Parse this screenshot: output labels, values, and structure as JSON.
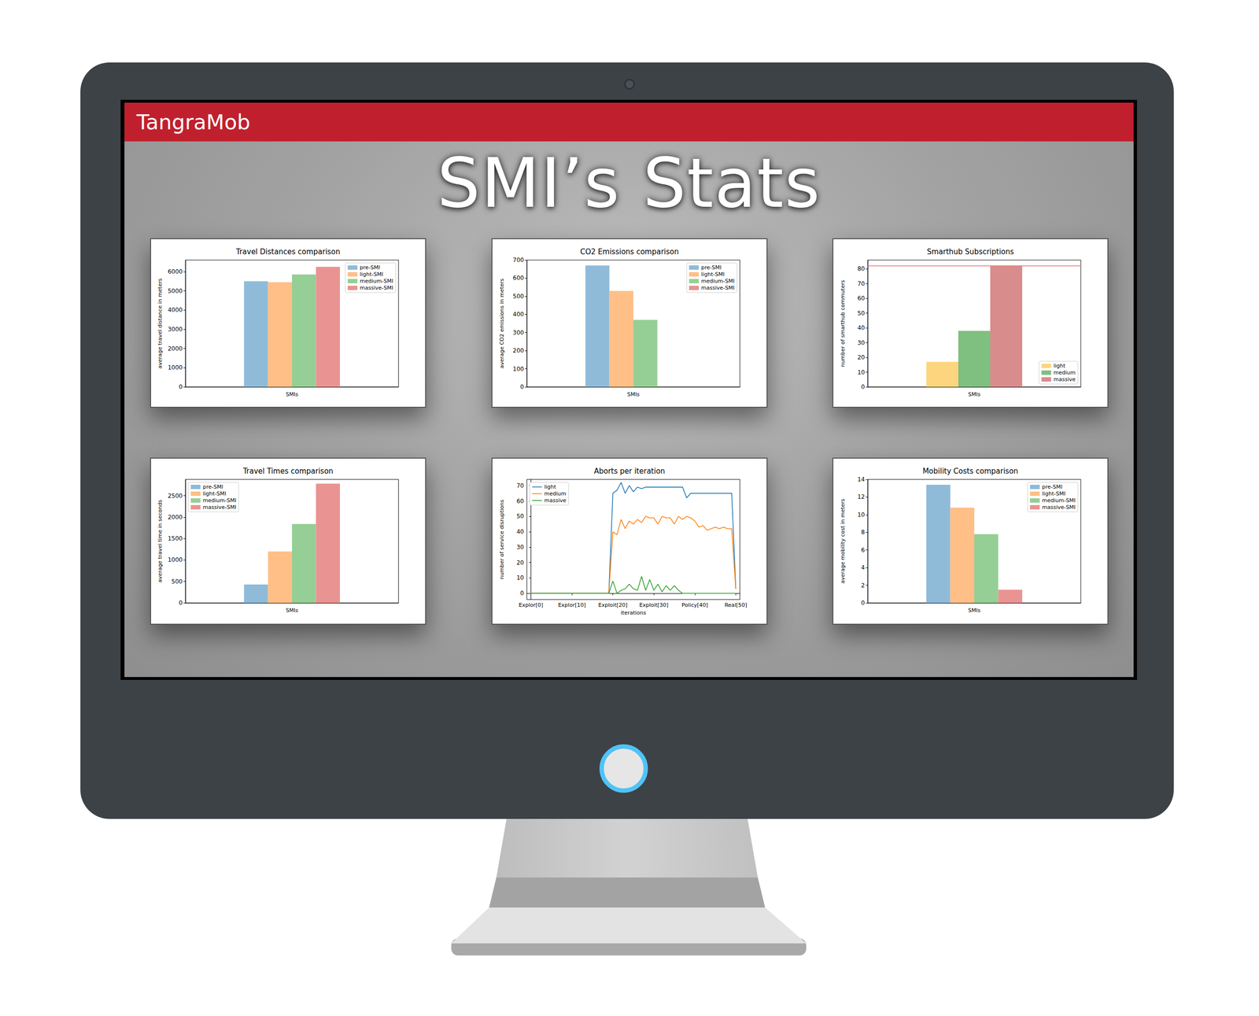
{
  "app_title": "TangraMob",
  "page_title": "SMI’s Stats",
  "chart_data": [
    {
      "type": "bar",
      "title": "Travel Distances comparison",
      "xlabel": "SMIs",
      "ylabel": "average travel distance in meters",
      "categories": [
        null
      ],
      "series": [
        {
          "name": "pre-SMI",
          "color": "#8fbbd9",
          "values": [
            5500
          ]
        },
        {
          "name": "light-SMI",
          "color": "#ffbf86",
          "values": [
            5450
          ]
        },
        {
          "name": "medium-SMI",
          "color": "#95cf95",
          "values": [
            5850
          ]
        },
        {
          "name": "massive-SMI",
          "color": "#ea9393",
          "values": [
            6250
          ]
        }
      ],
      "ylim": [
        0,
        6600
      ],
      "yticks": [
        0,
        1000,
        2000,
        3000,
        4000,
        5000,
        6000
      ],
      "grid": false,
      "legend": "upper right",
      "tick_labels": "y"
    },
    {
      "type": "bar",
      "title": "CO2 Emissions comparison",
      "xlabel": "SMIs",
      "ylabel": "average CO2 emissions in meters",
      "categories": [
        null
      ],
      "series": [
        {
          "name": "pre-SMI",
          "color": "#8fbbd9",
          "values": [
            670
          ]
        },
        {
          "name": "light-SMI",
          "color": "#ffbf86",
          "values": [
            530
          ]
        },
        {
          "name": "medium-SMI",
          "color": "#95cf95",
          "values": [
            370
          ]
        },
        {
          "name": "massive-SMI",
          "color": "#ea9393",
          "values": [
            0
          ]
        }
      ],
      "ylim": [
        0,
        700
      ],
      "yticks": [
        0,
        100,
        200,
        300,
        400,
        500,
        600,
        700
      ],
      "grid": false,
      "legend": "upper right",
      "tick_labels": "y"
    },
    {
      "type": "bar",
      "title": "Smarthub Subscriptions",
      "xlabel": "SMIs",
      "ylabel": "number of smarthub commuters",
      "categories": [
        null
      ],
      "series": [
        {
          "name": "light",
          "color": "#fdd57e",
          "values": [
            17
          ]
        },
        {
          "name": "medium",
          "color": "#7fbf7f",
          "values": [
            38
          ]
        },
        {
          "name": "massive",
          "color": "#d98c8c",
          "values": [
            82
          ]
        }
      ],
      "hline": 82,
      "ylim": [
        0,
        86
      ],
      "yticks": [
        0,
        10,
        20,
        30,
        40,
        50,
        60,
        70,
        80
      ],
      "grid": false,
      "legend": "lower right",
      "tick_labels": "y"
    },
    {
      "type": "bar",
      "title": "Travel Times comparison",
      "xlabel": "SMIs",
      "ylabel": "average travel time in seconds",
      "categories": [
        null
      ],
      "series": [
        {
          "name": "pre-SMI",
          "color": "#8fbbd9",
          "values": [
            430
          ]
        },
        {
          "name": "light-SMI",
          "color": "#ffbf86",
          "values": [
            1200
          ]
        },
        {
          "name": "medium-SMI",
          "color": "#95cf95",
          "values": [
            1840
          ]
        },
        {
          "name": "massive-SMI",
          "color": "#ea9393",
          "values": [
            2780
          ]
        }
      ],
      "ylim": [
        0,
        2880
      ],
      "yticks": [
        0,
        500,
        1000,
        1500,
        2000,
        2500
      ],
      "grid": false,
      "legend": "upper left",
      "tick_labels": "y"
    },
    {
      "type": "line",
      "title": "Aborts per iteration",
      "xlabel": "iterations",
      "ylabel": "number of service disruptions",
      "x": [
        0,
        1,
        2,
        3,
        4,
        5,
        6,
        7,
        8,
        9,
        10,
        11,
        12,
        13,
        14,
        15,
        16,
        17,
        18,
        19,
        20,
        21,
        22,
        23,
        24,
        25,
        26,
        27,
        28,
        29,
        30,
        31,
        32,
        33,
        34,
        35,
        36,
        37,
        38,
        39,
        40,
        41,
        42,
        43,
        44,
        45,
        46,
        47,
        48,
        49,
        50
      ],
      "series": [
        {
          "name": "light",
          "color": "#1f77b4",
          "values": [
            0,
            0,
            0,
            0,
            0,
            0,
            0,
            0,
            0,
            0,
            0,
            0,
            0,
            0,
            0,
            0,
            0,
            0,
            0,
            0,
            65,
            67,
            72,
            65,
            70,
            66,
            69,
            68,
            69,
            69,
            69,
            69,
            69,
            69,
            69,
            69,
            69,
            69,
            62,
            65,
            65,
            65,
            65,
            65,
            65,
            65,
            65,
            65,
            65,
            65,
            3
          ]
        },
        {
          "name": "medium",
          "color": "#ff7f0e",
          "values": [
            0,
            0,
            0,
            0,
            0,
            0,
            0,
            0,
            0,
            0,
            0,
            0,
            0,
            0,
            0,
            0,
            0,
            0,
            0,
            0,
            40,
            38,
            48,
            42,
            47,
            45,
            48,
            46,
            50,
            49,
            49,
            45,
            50,
            49,
            49,
            45,
            50,
            48,
            50,
            49,
            47,
            43,
            44,
            41,
            42,
            43,
            42,
            43,
            42,
            42,
            3
          ]
        },
        {
          "name": "massive",
          "color": "#2ca02c",
          "values": [
            0,
            0,
            0,
            0,
            0,
            0,
            0,
            0,
            0,
            0,
            0,
            0,
            0,
            0,
            0,
            0,
            0,
            0,
            0,
            0,
            8,
            0,
            2,
            3,
            6,
            3,
            2,
            11,
            2,
            9,
            2,
            6,
            1,
            5,
            2,
            5,
            2,
            0,
            0,
            0,
            0,
            0,
            0,
            0,
            0,
            0,
            0,
            0,
            0,
            0,
            0
          ]
        }
      ],
      "xlim": [
        -1,
        51
      ],
      "xticks": [
        {
          "value": 0,
          "label": "Explor[0]"
        },
        {
          "value": 10,
          "label": "Explor[10]"
        },
        {
          "value": 20,
          "label": "Exploit[20]"
        },
        {
          "value": 30,
          "label": "Exploit[30]"
        },
        {
          "value": 40,
          "label": "Policy[40]"
        },
        {
          "value": 50,
          "label": "Real[50]"
        }
      ],
      "ylim": [
        -4,
        74
      ],
      "yticks": [
        0,
        10,
        20,
        30,
        40,
        50,
        60,
        70
      ],
      "grid": false,
      "legend": "upper left"
    },
    {
      "type": "bar",
      "title": "Mobility Costs comparison",
      "xlabel": "SMIs",
      "ylabel": "average mobility cost in meters",
      "categories": [
        null
      ],
      "series": [
        {
          "name": "pre-SMI",
          "color": "#8fbbd9",
          "values": [
            13.4
          ]
        },
        {
          "name": "light-SMI",
          "color": "#ffbf86",
          "values": [
            10.8
          ]
        },
        {
          "name": "medium-SMI",
          "color": "#95cf95",
          "values": [
            7.8
          ]
        },
        {
          "name": "massive-SMI",
          "color": "#ea9393",
          "values": [
            1.5
          ]
        }
      ],
      "ylim": [
        0,
        14
      ],
      "yticks": [
        0,
        2,
        4,
        6,
        8,
        10,
        12,
        14
      ],
      "grid": false,
      "legend": "upper right",
      "tick_labels": "y"
    }
  ]
}
